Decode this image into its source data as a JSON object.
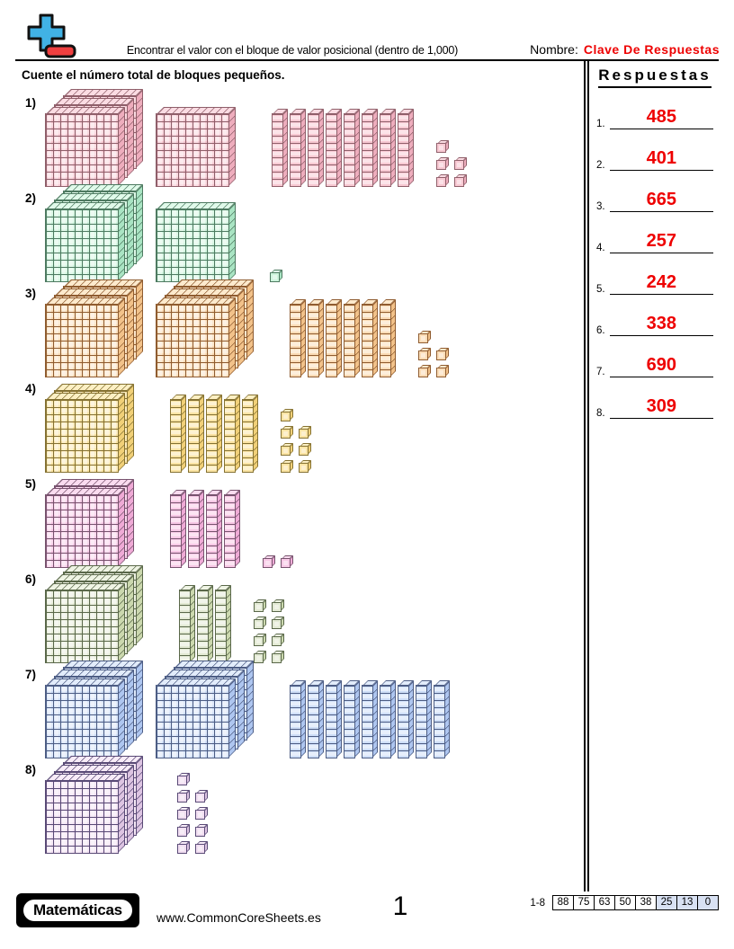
{
  "colors": {
    "red": "#ee0000"
  },
  "header": {
    "logo": "plus-minus-icon",
    "title": "Encontrar el valor con el bloque de valor posicional (dentro de 1,000)",
    "name_label": "Nombre:",
    "name_value": "Clave De Respuestas",
    "instruction": "Cuente el número total de bloques pequeños."
  },
  "answers": {
    "title": "Respuestas",
    "items": [
      {
        "num": "1.",
        "value": "485"
      },
      {
        "num": "2.",
        "value": "401"
      },
      {
        "num": "3.",
        "value": "665"
      },
      {
        "num": "4.",
        "value": "257"
      },
      {
        "num": "5.",
        "value": "242"
      },
      {
        "num": "6.",
        "value": "338"
      },
      {
        "num": "7.",
        "value": "690"
      },
      {
        "num": "8.",
        "value": "309"
      }
    ]
  },
  "problems": [
    {
      "label": "1)",
      "hundreds": 4,
      "tens": 8,
      "ones": 5,
      "hundreds_stacks": [
        3,
        1
      ],
      "ones_rows": [
        1,
        2,
        2
      ],
      "colors": {
        "face": "#f8c9d3",
        "line": "#8f5f6a",
        "shade": "#eeadbd",
        "top": "#fbdce3"
      }
    },
    {
      "label": "2)",
      "hundreds": 4,
      "tens": 0,
      "ones": 1,
      "hundreds_stacks": [
        3,
        1
      ],
      "ones_rows": [
        1
      ],
      "colors": {
        "face": "#cdf4dc",
        "line": "#4e7a61",
        "shade": "#a9e4c3",
        "top": "#e0faea"
      }
    },
    {
      "label": "3)",
      "hundreds": 6,
      "tens": 6,
      "ones": 5,
      "hundreds_stacks": [
        3,
        3
      ],
      "ones_rows": [
        1,
        2,
        2
      ],
      "colors": {
        "face": "#fbdcb6",
        "line": "#8f5c30",
        "shade": "#f2c28a",
        "top": "#fdeacd"
      }
    },
    {
      "label": "4)",
      "hundreds": 2,
      "tens": 5,
      "ones": 7,
      "hundreds_stacks": [
        2
      ],
      "ones_rows": [
        1,
        2,
        2,
        2
      ],
      "colors": {
        "face": "#fbe4a4",
        "line": "#857233",
        "shade": "#f1d078",
        "top": "#fdf0c4"
      }
    },
    {
      "label": "5)",
      "hundreds": 2,
      "tens": 4,
      "ones": 2,
      "hundreds_stacks": [
        2
      ],
      "ones_rows": [
        2
      ],
      "colors": {
        "face": "#f8c8e6",
        "line": "#77536e",
        "shade": "#efaad6",
        "top": "#fbdcf0"
      }
    },
    {
      "label": "6)",
      "hundreds": 3,
      "tens": 3,
      "ones": 8,
      "hundreds_stacks": [
        3
      ],
      "ones_rows": [
        2,
        2,
        2,
        2
      ],
      "colors": {
        "face": "#e3ead4",
        "line": "#5a684a",
        "shade": "#cbd8ae",
        "top": "#eff4e4"
      }
    },
    {
      "label": "7)",
      "hundreds": 6,
      "tens": 9,
      "ones": 0,
      "hundreds_stacks": [
        3,
        3
      ],
      "ones_rows": [],
      "colors": {
        "face": "#cfdff8",
        "line": "#4d5d84",
        "shade": "#aec6f0",
        "top": "#e2ecfb"
      }
    },
    {
      "label": "8)",
      "hundreds": 3,
      "tens": 0,
      "ones": 9,
      "hundreds_stacks": [
        3
      ],
      "ones_rows": [
        1,
        2,
        2,
        2,
        2
      ],
      "colors": {
        "face": "#f1def1",
        "line": "#594a76",
        "shade": "#ddc4e2",
        "top": "#f8ecf8"
      }
    }
  ],
  "footer": {
    "brand": "Matemáticas",
    "website": "www.CommonCoreSheets.es",
    "page_number": "1",
    "score_table": {
      "label": "1-8",
      "cells": [
        "88",
        "75",
        "63",
        "50",
        "38",
        "25",
        "13",
        "0"
      ]
    }
  }
}
